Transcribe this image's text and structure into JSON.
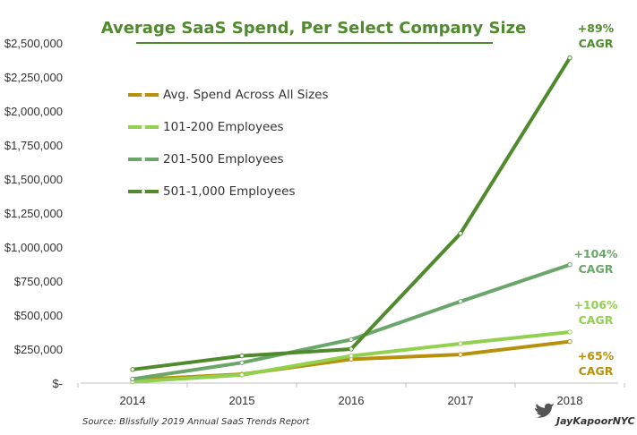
{
  "chart_data": {
    "type": "line",
    "title": "Average SaaS Spend, Per Select Company Size",
    "x": [
      "2014",
      "2015",
      "2016",
      "2017",
      "2018"
    ],
    "ylim": [
      0,
      2500000
    ],
    "yticks": [
      "$-",
      "$250,000",
      "$500,000",
      "$750,000",
      "$1,000,000",
      "$1,250,000",
      "$1,500,000",
      "$1,750,000",
      "$2,000,000",
      "$2,250,000",
      "$2,500,000"
    ],
    "ytick_values": [
      0,
      250000,
      500000,
      750000,
      1000000,
      1250000,
      1500000,
      1750000,
      2000000,
      2250000,
      2500000
    ],
    "legend_position": "top-left",
    "series": [
      {
        "name": "Avg. Spend Across All Sizes",
        "color": "#b8900c",
        "values": [
          25000,
          65000,
          175000,
          210000,
          305000
        ],
        "cagr": "+65%",
        "cagr_label": "CAGR"
      },
      {
        "name": "101-200 Employees",
        "color": "#92d050",
        "values": [
          10000,
          60000,
          200000,
          290000,
          375000
        ],
        "cagr": "+106%",
        "cagr_label": "CAGR"
      },
      {
        "name": "201-500 Employees",
        "color": "#6aa56a",
        "values": [
          30000,
          150000,
          320000,
          600000,
          870000
        ],
        "cagr": "+104%",
        "cagr_label": "CAGR"
      },
      {
        "name": "501-1,000 Employees",
        "color": "#4f8a2c",
        "values": [
          100000,
          200000,
          250000,
          1100000,
          2390000
        ],
        "cagr": "+89%",
        "cagr_label": "CAGR"
      }
    ],
    "source": "Source: Blissfully 2019 Annual SaaS Trends Report",
    "credit": "JayKapoorNYC"
  }
}
